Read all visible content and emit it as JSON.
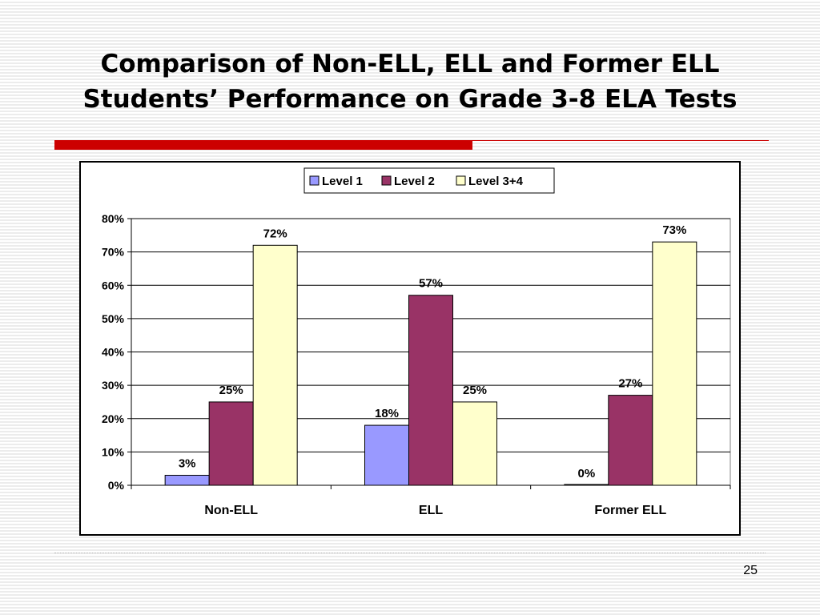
{
  "slide": {
    "title_line1": "Comparison of Non-ELL, ELL and Former ELL",
    "title_line2": "Students’ Performance on Grade 3-8 ELA Tests",
    "page_number": "25",
    "accent_color": "#cc0000"
  },
  "chart_data": {
    "type": "bar",
    "title": "",
    "xlabel": "",
    "ylabel": "",
    "categories": [
      "Non-ELL",
      "ELL",
      "Former ELL"
    ],
    "series": [
      {
        "name": "Level 1",
        "values": [
          3,
          18,
          0
        ],
        "labels": [
          "3%",
          "18%",
          "0%"
        ],
        "color": "#9999ff"
      },
      {
        "name": "Level 2",
        "values": [
          25,
          57,
          27
        ],
        "labels": [
          "25%",
          "57%",
          "27%"
        ],
        "color": "#993366"
      },
      {
        "name": "Level 3+4",
        "values": [
          72,
          25,
          73
        ],
        "labels": [
          "72%",
          "25%",
          "73%"
        ],
        "color": "#ffffcc"
      }
    ],
    "ylim": [
      0,
      80
    ],
    "y_ticks": [
      0,
      10,
      20,
      30,
      40,
      50,
      60,
      70,
      80
    ],
    "y_tick_labels": [
      "0%",
      "10%",
      "20%",
      "30%",
      "40%",
      "50%",
      "60%",
      "70%",
      "80%"
    ],
    "grid": true,
    "legend_position": "top"
  }
}
